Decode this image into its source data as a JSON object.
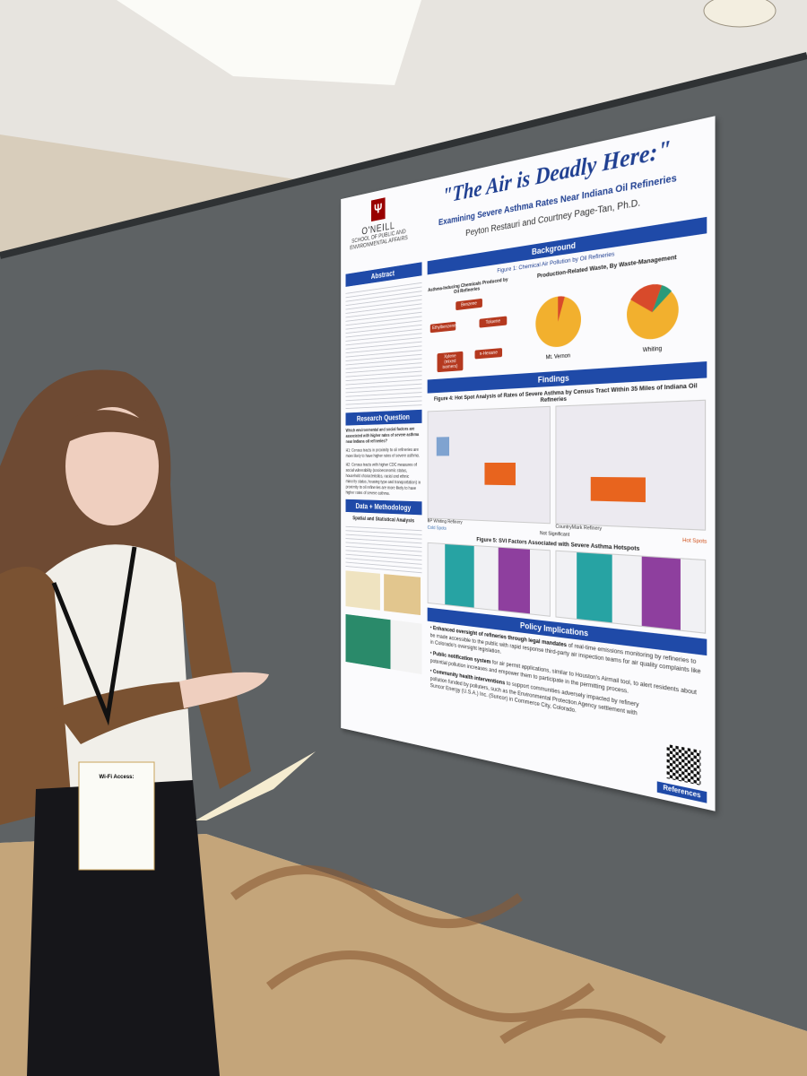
{
  "poster": {
    "logo": {
      "name": "O'NEILL",
      "school": "SCHOOL OF PUBLIC AND ENVIRONMENTAL AFFAIRS"
    },
    "title": "\"The Air is Deadly Here:\"",
    "subtitle": "Examining Severe Asthma Rates Near Indiana Oil Refineries",
    "authors": "Peyton Restauri and Courtney Page-Tan, Ph.D.",
    "abstract": {
      "heading": "Abstract"
    },
    "research_question": {
      "heading": "Research Question",
      "question": "Which environmental and social factors are associated with higher rates of severe asthma near Indiana oil refineries?",
      "hypotheses": [
        "H1: Census tracts in proximity to oil refineries are more likely to have higher rates of severe asthma.",
        "H2: Census tracts with higher CDC measures of social vulnerability (socioeconomic status, household characteristics, racial and ethnic minority status, housing type and transportation) in proximity to oil refineries are more likely to have higher rates of severe asthma."
      ]
    },
    "methodology": {
      "heading": "Data + Methodology",
      "subheading": "Spatial and Statistical Analysis"
    },
    "background": {
      "heading": "Background",
      "figure_caption": "Figure 1: Chemical Air Pollution by Oil Refineries",
      "chemicals_title": "Asthma-Inducing Chemicals Produced by Oil Refineries",
      "chemicals": [
        "Benzene",
        "Toluene",
        "n-Hexane",
        "Xylene (mixed isomers)",
        "Ethylbenzene"
      ],
      "waste_title": "Production-Related Waste, By Waste-Management",
      "sites": [
        "Mt. Vernon",
        "Whiting"
      ]
    },
    "findings": {
      "heading": "Findings",
      "figure4_caption": "Figure 4: Hot Spot Analysis of Rates of Severe Asthma by Census Tract Within 35 Miles of Indiana Oil Refineries",
      "maps": [
        "BP Whiting Refinery",
        "CountryMark Refinery"
      ],
      "legend": [
        "Cold Spots",
        "Not Significant",
        "Hot Spots"
      ],
      "figure5_caption": "Figure 5: SVI Factors Associated with Severe Asthma Hotspots"
    },
    "policy": {
      "heading": "Policy Implications",
      "items": [
        {
          "lead": "Enhanced oversight of refineries through legal mandates",
          "text": "of real-time emissions monitoring by refineries to be made accessible to the public with rapid response third-party air inspection teams for air quality complaints like in Colorado's oversight legislation."
        },
        {
          "lead": "Public notification system",
          "text": "for air permit applications, similar to Houston's Airmail tool, to alert residents about potential pollution increases and empower them to participate in the permitting process."
        },
        {
          "lead": "Community health interventions",
          "text": "to support communities adversely impacted by refinery pollution funded by polluters, such as the Environmental Protection Agency settlement with Suncor Energy (U.S.A.) Inc. (Suncor) in Commerce City, Colorado."
        }
      ]
    },
    "references": "References"
  },
  "badge": {
    "title": "Wi-Fi Access:"
  }
}
